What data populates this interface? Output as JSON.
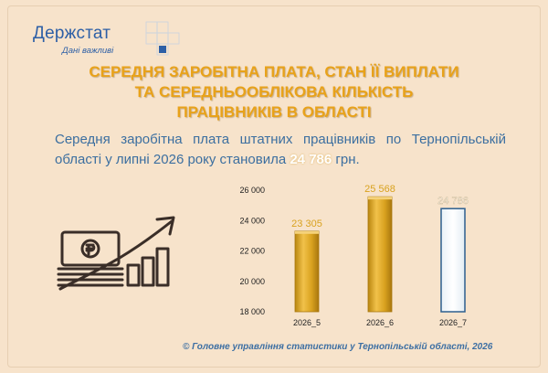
{
  "logo": {
    "name": "Держстат",
    "tagline": "Дані важливі"
  },
  "headline": {
    "lines": [
      "Середня заробітна плата, стан її виплати",
      "та середньооблікова кількість",
      "працівників в області"
    ]
  },
  "summary": {
    "before": "Середня заробітна плата штатних працівників по Тернопільській області у липні 2026 року становила ",
    "highlight": "24 786",
    "after": " грн."
  },
  "chart_data": {
    "type": "bar",
    "categories": [
      "2026_5",
      "2026_6",
      "2026_7"
    ],
    "values": [
      23305,
      25568,
      24786
    ],
    "data_labels": [
      "23 305",
      "25 568",
      "24 786"
    ],
    "ylim": [
      18000,
      26000
    ],
    "yticks": [
      18000,
      20000,
      22000,
      24000,
      26000
    ],
    "ytick_labels": [
      "18 000",
      "20 000",
      "22 000",
      "24 000",
      "26 000"
    ],
    "title": "",
    "xlabel": "",
    "ylabel": "",
    "grid": false,
    "colors": {
      "gold": "#d9a21f",
      "gold_dark": "#a8770e",
      "highlight_bar": "#fffaf0",
      "highlight_border": "#2d5f8f"
    }
  },
  "footer": {
    "text": "© Головне управління статистики у Тернопільській області, 2026"
  },
  "colors": {
    "background": "#f7e3cb",
    "brand_blue": "#2d5fa6",
    "headline_orange": "#e8a21a",
    "text_blue": "#3c6fa0"
  },
  "icons": {
    "illustration": "money-growth-chart-icon"
  }
}
